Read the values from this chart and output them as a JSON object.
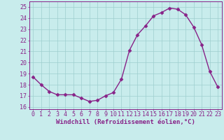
{
  "x": [
    0,
    1,
    2,
    3,
    4,
    5,
    6,
    7,
    8,
    9,
    10,
    11,
    12,
    13,
    14,
    15,
    16,
    17,
    18,
    19,
    20,
    21,
    22,
    23
  ],
  "y": [
    18.7,
    18.0,
    17.4,
    17.1,
    17.1,
    17.1,
    16.8,
    16.5,
    16.6,
    17.0,
    17.3,
    18.5,
    21.1,
    22.5,
    23.3,
    24.2,
    24.5,
    24.9,
    24.8,
    24.3,
    23.2,
    21.6,
    19.2,
    17.8
  ],
  "line_color": "#882288",
  "marker": "D",
  "markersize": 2.5,
  "linewidth": 1.0,
  "bg_color": "#c8ecec",
  "grid_color": "#9ecece",
  "ylabel_ticks": [
    16,
    17,
    18,
    19,
    20,
    21,
    22,
    23,
    24,
    25
  ],
  "xlabel": "Windchill (Refroidissement éolien,°C)",
  "xlabel_fontsize": 6.5,
  "tick_fontsize": 6.0,
  "ylim": [
    15.8,
    25.5
  ],
  "xlim": [
    -0.5,
    23.5
  ]
}
